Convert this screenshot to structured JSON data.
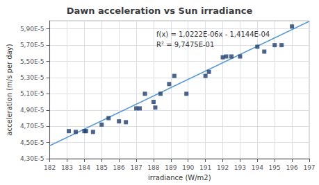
{
  "chart_data": {
    "type": "scatter",
    "title": "Dawn acceleration vs Sun irradiance",
    "xlabel": "irradiance (W/m2)",
    "ylabel": "acceleration (m/s per day)",
    "annotation": "f(x) = 1,0222E-06x - 1,4144E-04\nR² = 9,7475E-01",
    "grid": true,
    "xlim": [
      182,
      197
    ],
    "xticks": [
      182,
      183,
      184,
      185,
      186,
      187,
      188,
      189,
      190,
      191,
      192,
      193,
      194,
      195,
      196,
      197
    ],
    "ylim": [
      4.3e-05,
      6e-05
    ],
    "yticks": [
      {
        "value": 4.3e-05,
        "label": "4,30E-5"
      },
      {
        "value": 4.5e-05,
        "label": "4,50E-5"
      },
      {
        "value": 4.7e-05,
        "label": "4,70E-5"
      },
      {
        "value": 4.9e-05,
        "label": "4,90E-5"
      },
      {
        "value": 5.1e-05,
        "label": "5,10E-5"
      },
      {
        "value": 5.3e-05,
        "label": "5,30E-5"
      },
      {
        "value": 5.5e-05,
        "label": "5,50E-5"
      },
      {
        "value": 5.7e-05,
        "label": "5,70E-5"
      },
      {
        "value": 5.9e-05,
        "label": "5,90E-5"
      }
    ],
    "series": [
      {
        "type": "scatter",
        "color": "#1f3d6e",
        "marker": "square",
        "x": [
          183.1,
          183.5,
          184.0,
          184.1,
          184.5,
          185.0,
          185.4,
          186.0,
          186.4,
          187.0,
          187.2,
          187.5,
          188.0,
          188.1,
          188.4,
          188.9,
          189.2,
          189.9,
          191.0,
          191.2,
          192.0,
          192.2,
          192.5,
          193.0,
          194.0,
          194.4,
          195.0,
          195.4,
          196.0
        ],
        "values": [
          4.64e-05,
          4.63e-05,
          4.64e-05,
          4.64e-05,
          4.63e-05,
          4.72e-05,
          4.8e-05,
          4.76e-05,
          4.75e-05,
          4.92e-05,
          4.92e-05,
          5.1e-05,
          5e-05,
          4.93e-05,
          5.1e-05,
          5.22e-05,
          5.32e-05,
          5.1e-05,
          5.32e-05,
          5.37e-05,
          5.55e-05,
          5.56e-05,
          5.56e-05,
          5.56e-05,
          5.68e-05,
          5.62e-05,
          5.7e-05,
          5.7e-05,
          5.93e-05
        ]
      },
      {
        "type": "line",
        "color": "#5b9bd5",
        "line_style": "solid",
        "x": [
          182,
          197
        ],
        "values": [
          4.46004e-05,
          5.99334e-05
        ]
      }
    ]
  }
}
